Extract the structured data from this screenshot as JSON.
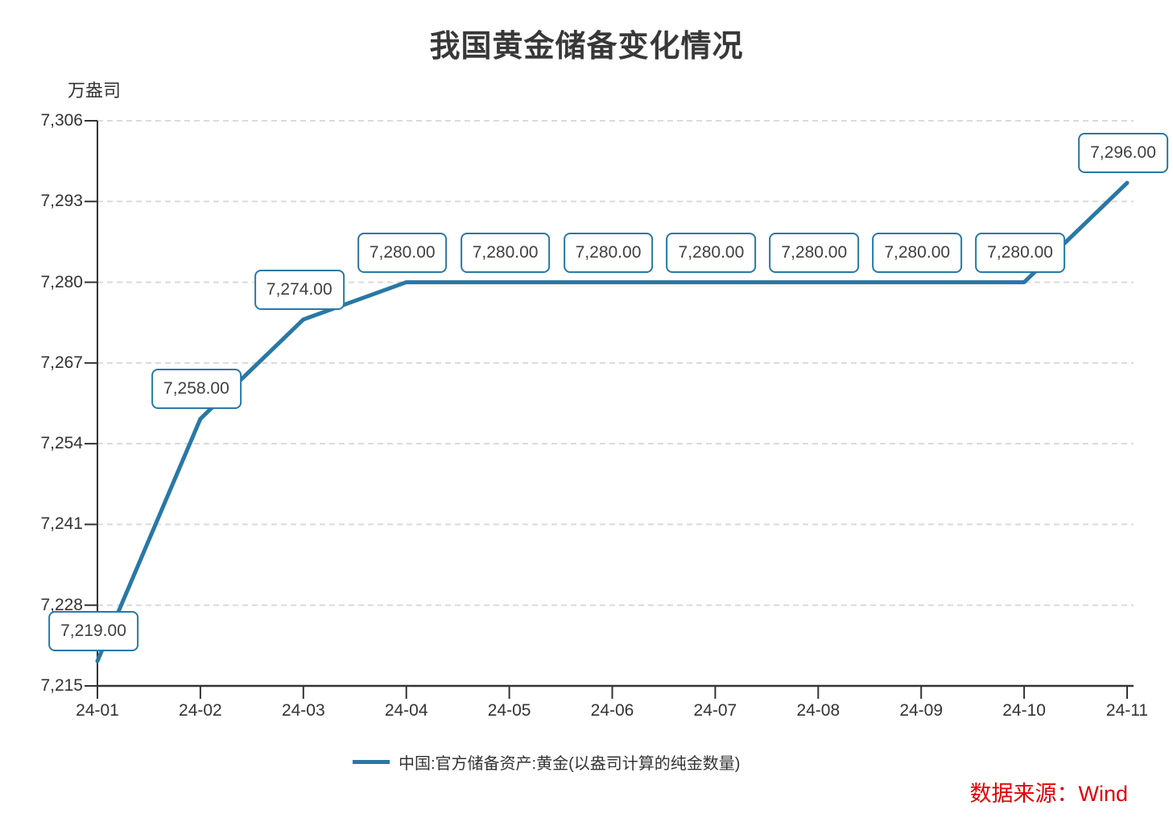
{
  "title": "我国黄金储备变化情况",
  "y_axis_unit": "万盎司",
  "source": "数据来源：Wind",
  "legend": {
    "label": "中国:官方储备资产:黄金(以盎司计算的纯金数量)"
  },
  "colors": {
    "line": "#2878A6",
    "label_border": "#2878A6",
    "label_text": "#404040",
    "axis": "#333333",
    "grid": "#DADADA",
    "title": "#383838",
    "source_text": "#E00000"
  },
  "chart_data": {
    "type": "line",
    "title": "我国黄金储备变化情况",
    "x": [
      "24-01",
      "24-02",
      "24-03",
      "24-04",
      "24-05",
      "24-06",
      "24-07",
      "24-08",
      "24-09",
      "24-10",
      "24-11"
    ],
    "series": [
      {
        "name": "中国:官方储备资产:黄金(以盎司计算的纯金数量)",
        "values": [
          7219,
          7258,
          7274,
          7280,
          7280,
          7280,
          7280,
          7280,
          7280,
          7280,
          7296
        ]
      }
    ],
    "data_labels": [
      "7,219.00",
      "7,258.00",
      "7,274.00",
      "7,280.00",
      "7,280.00",
      "7,280.00",
      "7,280.00",
      "7,280.00",
      "7,280.00",
      "7,280.00",
      "7,296.00"
    ],
    "xlabel": "",
    "ylabel": "万盎司",
    "ylim": [
      7215,
      7306
    ],
    "y_ticks": [
      7215,
      7228,
      7241,
      7254,
      7267,
      7280,
      7293,
      7306
    ],
    "y_tick_labels": [
      "7,215",
      "7,228",
      "7,241",
      "7,254",
      "7,267",
      "7,280",
      "7,293",
      "7,306"
    ],
    "grid": true,
    "grid_style": "dashed",
    "legend_position": "bottom"
  }
}
